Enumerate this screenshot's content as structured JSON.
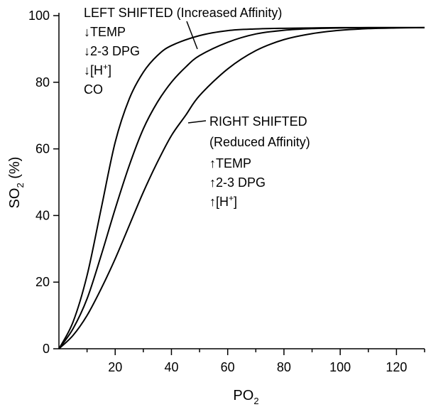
{
  "chart_data": {
    "type": "line",
    "xlabel": "PO",
    "xlabel_sub": "2",
    "ylabel_main": "SO",
    "ylabel_sub": "2",
    "ylabel_unit": "(%)",
    "xlim": [
      0,
      130
    ],
    "ylim": [
      0,
      100
    ],
    "x_ticks": [
      20,
      40,
      60,
      80,
      100,
      120
    ],
    "y_ticks": [
      0,
      20,
      40,
      60,
      80,
      100
    ],
    "x_minor_ticks": [
      10,
      30,
      50,
      70,
      90,
      110,
      130
    ],
    "grid": false,
    "series": [
      {
        "x": [
          0,
          5,
          10,
          15,
          20,
          25,
          30,
          35,
          40,
          50,
          60,
          70,
          80,
          90,
          100,
          110,
          120,
          130
        ],
        "values": [
          0,
          8,
          22,
          42,
          62,
          75,
          83,
          88,
          91,
          94,
          95.5,
          96,
          96.2,
          96.3,
          96.4,
          96.4,
          96.4,
          96.4
        ]
      },
      {
        "x": [
          0,
          5,
          10,
          15,
          20,
          25,
          30,
          35,
          40,
          45,
          50,
          60,
          70,
          80,
          90,
          100,
          110,
          120,
          130
        ],
        "values": [
          0,
          6,
          15,
          28,
          42,
          55,
          66,
          74,
          80,
          84.5,
          88,
          92,
          94.5,
          95.6,
          96.1,
          96.3,
          96.4,
          96.4,
          96.4
        ]
      },
      {
        "x": [
          0,
          5,
          10,
          15,
          20,
          25,
          30,
          35,
          40,
          45,
          50,
          60,
          70,
          80,
          90,
          100,
          110,
          120,
          130
        ],
        "values": [
          0,
          4,
          10,
          18,
          27,
          37,
          47,
          56,
          64,
          70,
          76,
          84,
          89.5,
          92.8,
          94.6,
          95.6,
          96.1,
          96.3,
          96.4
        ]
      }
    ],
    "annotations": {
      "left": {
        "title": "LEFT SHIFTED (Increased Affinity)",
        "lines": [
          {
            "arrow": "↓",
            "text": "TEMP",
            "sup": ""
          },
          {
            "arrow": "↓",
            "text": "2-3 DPG",
            "sup": ""
          },
          {
            "arrow": "↓",
            "text": "[H",
            "sup": "+",
            "close": "]"
          },
          {
            "arrow": "",
            "text": "CO",
            "sup": ""
          }
        ]
      },
      "right": {
        "title": "RIGHT SHIFTED",
        "subtitle": "(Reduced Affinity)",
        "lines": [
          {
            "arrow": "↑",
            "text": "TEMP",
            "sup": ""
          },
          {
            "arrow": "↑",
            "text": "2-3 DPG",
            "sup": ""
          },
          {
            "arrow": "↑",
            "text": "[H",
            "sup": "+",
            "close": "]"
          }
        ]
      }
    }
  }
}
